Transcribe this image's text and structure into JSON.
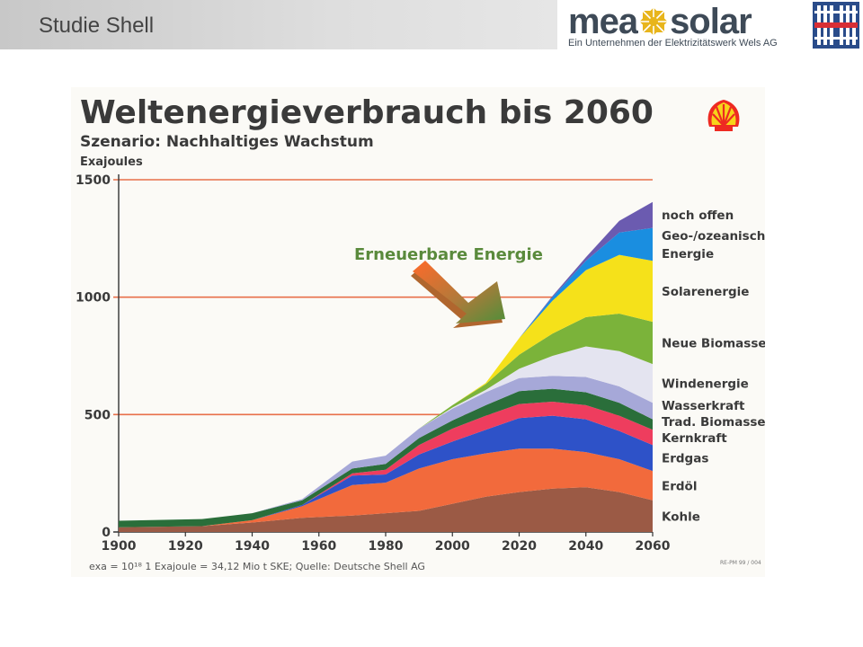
{
  "header": {
    "title": "Studie Shell",
    "logo": {
      "brand_left": "mea",
      "brand_right": "solar",
      "tagline": "Ein Unternehmen der Elektrizitätswerk Wels AG"
    }
  },
  "chart_data": {
    "type": "area",
    "stacked": true,
    "title": "Weltenergieverbrauch bis 2060",
    "subtitle": "Szenario: Nachhaltiges Wachstum",
    "ylabel": "Exajoules",
    "ylim": [
      0,
      1500
    ],
    "yticks": [
      "0",
      "500",
      "1000",
      "1500"
    ],
    "xlim": [
      1900,
      2060
    ],
    "xticks": [
      "1900",
      "1920",
      "1940",
      "1960",
      "1980",
      "2000",
      "2020",
      "2040",
      "2060"
    ],
    "grid": {
      "y": true,
      "color": "#e8704a"
    },
    "annotation": "Erneuerbare Energie",
    "footnote": "exa = 10¹⁸ 1 Exajoule = 34,12 Mio t SKE; Quelle: Deutsche Shell AG",
    "code": "RE-PM 99 / 004",
    "x": [
      1900,
      1925,
      1940,
      1955,
      1970,
      1980,
      1990,
      2000,
      2010,
      2020,
      2030,
      2040,
      2050,
      2060
    ],
    "series": [
      {
        "name": "Kohle",
        "color": "#9b5a45",
        "values": [
          20,
          25,
          40,
          60,
          70,
          80,
          90,
          120,
          150,
          170,
          185,
          190,
          170,
          135
        ]
      },
      {
        "name": "Erdöl",
        "color": "#f26a3c",
        "values": [
          0,
          0,
          10,
          50,
          130,
          130,
          180,
          190,
          185,
          185,
          170,
          150,
          140,
          125
        ]
      },
      {
        "name": "Erdgas",
        "color": "#2e52c8",
        "values": [
          0,
          0,
          0,
          5,
          40,
          35,
          60,
          75,
          100,
          130,
          140,
          140,
          120,
          110
        ]
      },
      {
        "name": "Kernkraft",
        "color": "#ee3d5e",
        "values": [
          0,
          0,
          0,
          0,
          10,
          20,
          40,
          55,
          60,
          60,
          60,
          60,
          65,
          65
        ]
      },
      {
        "name": "Trad. Biomasse",
        "color": "#2a6e3a",
        "values": [
          28,
          30,
          30,
          20,
          20,
          25,
          30,
          35,
          45,
          55,
          55,
          55,
          55,
          45
        ]
      },
      {
        "name": "Wasserkraft",
        "color": "#a6a8d8",
        "values": [
          0,
          0,
          0,
          5,
          30,
          35,
          40,
          50,
          55,
          55,
          55,
          65,
          70,
          70
        ]
      },
      {
        "name": "Windenergie",
        "color": "#e4e4f0",
        "values": [
          0,
          0,
          0,
          0,
          0,
          0,
          0,
          5,
          10,
          40,
          85,
          130,
          150,
          165
        ]
      },
      {
        "name": "Neue Biomasse",
        "color": "#7bb33a",
        "values": [
          0,
          0,
          0,
          0,
          0,
          0,
          0,
          10,
          25,
          60,
          95,
          125,
          160,
          180
        ]
      },
      {
        "name": "Solarenergie",
        "color": "#f5e11a",
        "values": [
          0,
          0,
          0,
          0,
          0,
          0,
          0,
          0,
          5,
          70,
          140,
          200,
          250,
          260
        ]
      },
      {
        "name": "Geo-/ozeanische Energie",
        "color": "#1a8ee0",
        "values": [
          0,
          0,
          0,
          0,
          0,
          0,
          0,
          0,
          0,
          0,
          15,
          40,
          95,
          140
        ]
      },
      {
        "name": "noch offen",
        "color": "#6b5bb0",
        "values": [
          0,
          0,
          0,
          0,
          0,
          0,
          0,
          0,
          0,
          0,
          5,
          15,
          50,
          110
        ]
      }
    ]
  }
}
